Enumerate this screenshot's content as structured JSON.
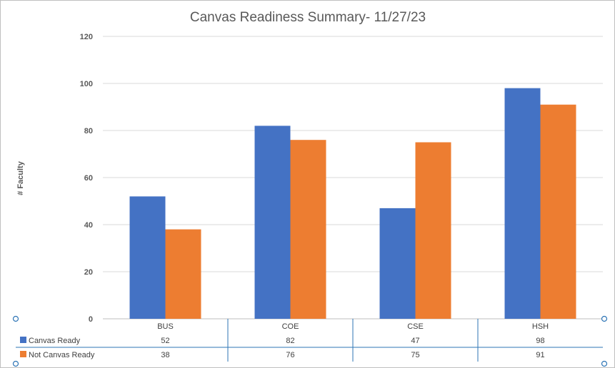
{
  "chart_data": {
    "type": "bar",
    "title": "Canvas Readiness Summary- 11/27/23",
    "xlabel": "",
    "ylabel": "# Faculty",
    "ylim": [
      0,
      120
    ],
    "yticks": [
      0,
      20,
      40,
      60,
      80,
      100,
      120
    ],
    "grid": true,
    "legend": "data-table",
    "categories": [
      "BUS",
      "COE",
      "CSE",
      "HSH"
    ],
    "series": [
      {
        "name": "Canvas Ready",
        "color": "#4472c4",
        "values": [
          52,
          82,
          47,
          98
        ]
      },
      {
        "name": "Not Canvas Ready",
        "color": "#ed7d31",
        "values": [
          38,
          76,
          75,
          91
        ]
      }
    ]
  }
}
